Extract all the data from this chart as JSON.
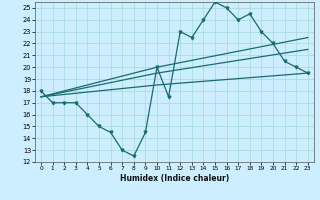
{
  "title": "",
  "xlabel": "Humidex (Indice chaleur)",
  "bg_color": "#cceeff",
  "grid_color": "#aadddd",
  "line_color": "#1a6b6b",
  "xlim": [
    -0.5,
    23.5
  ],
  "ylim": [
    12,
    25.5
  ],
  "yticks": [
    12,
    13,
    14,
    15,
    16,
    17,
    18,
    19,
    20,
    21,
    22,
    23,
    24,
    25
  ],
  "xticks": [
    0,
    1,
    2,
    3,
    4,
    5,
    6,
    7,
    8,
    9,
    10,
    11,
    12,
    13,
    14,
    15,
    16,
    17,
    18,
    19,
    20,
    21,
    22,
    23
  ],
  "line1_x": [
    0,
    1,
    2,
    3,
    4,
    5,
    6,
    7,
    8,
    9,
    10,
    11,
    12,
    13,
    14,
    15,
    16,
    17,
    18,
    19,
    20,
    21,
    22,
    23
  ],
  "line1_y": [
    18,
    17,
    17,
    17,
    16,
    15,
    14.5,
    13,
    12.5,
    14.5,
    20,
    17.5,
    23,
    22.5,
    24,
    25.5,
    25,
    24,
    24.5,
    23,
    22,
    20.5,
    20,
    19.5
  ],
  "line2_x": [
    0,
    10,
    23
  ],
  "line2_y": [
    17.5,
    19.5,
    21.5
  ],
  "line3_x": [
    0,
    10,
    23
  ],
  "line3_y": [
    17.5,
    20.0,
    22.5
  ],
  "line4_x": [
    0,
    10,
    23
  ],
  "line4_y": [
    17.5,
    18.5,
    19.5
  ]
}
